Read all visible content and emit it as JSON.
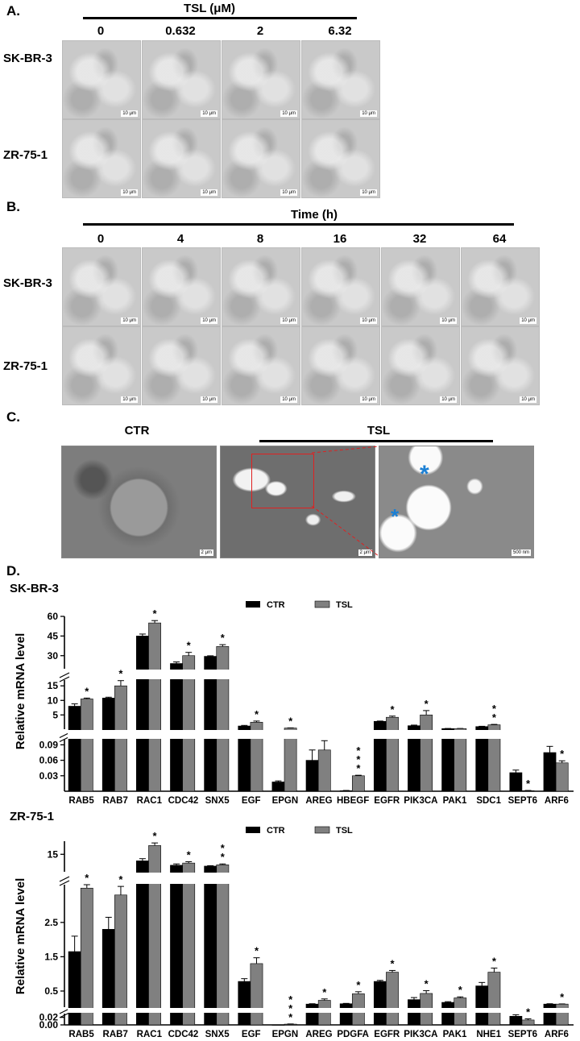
{
  "panelA": {
    "letter": "A.",
    "treatment_label": "TSL (μM)",
    "columns": [
      "0",
      "0.632",
      "2",
      "6.32"
    ],
    "rows": [
      "SK-BR-3",
      "ZR-75-1"
    ],
    "scale_label": "10 μm"
  },
  "panelB": {
    "letter": "B.",
    "treatment_label": "Time (h)",
    "columns": [
      "0",
      "4",
      "8",
      "16",
      "32",
      "64"
    ],
    "rows": [
      "SK-BR-3",
      "ZR-75-1"
    ],
    "scale_label": "10 μm"
  },
  "panelC": {
    "letter": "C.",
    "ctr_label": "CTR",
    "tsl_label": "TSL",
    "asterisk": "*",
    "scale_a": "2 μm",
    "scale_b": "2 μm",
    "scale_c": "500 nm",
    "colors": {
      "zoom_box": "#e02020",
      "asterisk": "#1a7fd4"
    }
  },
  "panelD": {
    "letter": "D."
  },
  "chart_data": [
    {
      "type": "bar",
      "title": "SK-BR-3",
      "ylabel": "Relative mRNA level",
      "axis_breaks": true,
      "y_ticks_upper": [
        "60",
        "45",
        "30"
      ],
      "y_ticks_middle": [
        "15",
        "10",
        "5"
      ],
      "y_ticks_lower": [
        "0.09",
        "0.06",
        "0.03"
      ],
      "legend": {
        "placement": "top-center",
        "entries": [
          "CTR",
          "TSL"
        ]
      },
      "colors": {
        "CTR": "#000000",
        "TSL": "#808080"
      },
      "categories": [
        "RAB5",
        "RAB7",
        "RAC1",
        "CDC42",
        "SNX5",
        "EGF",
        "EPGN",
        "AREG",
        "HBEGF",
        "EGFR",
        "PIK3CA",
        "PAK1",
        "SDC1",
        "SEPT6",
        "ARF6"
      ],
      "series": [
        {
          "name": "CTR",
          "values": [
            8,
            10.8,
            45,
            24,
            29.5,
            1.2,
            0.018,
            0.06,
            0.001,
            2.8,
            1.3,
            0.3,
            1.0,
            0.036,
            0.075
          ],
          "errors": [
            0.8,
            0.3,
            1.5,
            1.2,
            0.4,
            0.2,
            0.002,
            0.02,
            0.0005,
            0.1,
            0.2,
            0.05,
            0.1,
            0.005,
            0.012
          ]
        },
        {
          "name": "TSL",
          "values": [
            10.5,
            15,
            55,
            30,
            37,
            2.5,
            0.5,
            0.08,
            0.03,
            4.2,
            5,
            0.3,
            1.6,
            0.001,
            0.055
          ],
          "errors": [
            0.3,
            1.8,
            1.8,
            2.5,
            1.4,
            0.4,
            0.05,
            0.018,
            0.001,
            0.4,
            1.5,
            0.05,
            0.15,
            0.0005,
            0.004
          ]
        }
      ],
      "significance": [
        "*",
        "*",
        "*",
        "*",
        "*",
        "*",
        "*",
        "",
        "* * *",
        "*",
        "*",
        "",
        "* *",
        "*",
        "*"
      ]
    },
    {
      "type": "bar",
      "title": "ZR-75-1",
      "ylabel": "Relative mRNA level",
      "axis_breaks": true,
      "y_ticks_upper": [
        "15"
      ],
      "y_ticks_middle": [
        "2.5",
        "1.5",
        "0.5"
      ],
      "y_ticks_lower": [
        "0.02",
        "0.00"
      ],
      "legend": {
        "placement": "top-center",
        "entries": [
          "CTR",
          "TSL"
        ]
      },
      "colors": {
        "CTR": "#000000",
        "TSL": "#808080"
      },
      "categories": [
        "RAB5",
        "RAB7",
        "RAC1",
        "CDC42",
        "SNX5",
        "EGF",
        "EPGN",
        "AREG",
        "PDGFA",
        "EGFR",
        "PIK3CA",
        "PAK1",
        "NHE1",
        "SEPT6",
        "ARF6"
      ],
      "series": [
        {
          "name": "CTR",
          "values": [
            1.65,
            2.3,
            13.5,
            12.5,
            12.3,
            0.78,
            0.0,
            0.12,
            0.13,
            0.78,
            0.25,
            0.17,
            0.65,
            0.023,
            0.12
          ],
          "errors": [
            0.45,
            0.35,
            0.5,
            0.3,
            0.1,
            0.08,
            0.0,
            0.01,
            0.01,
            0.03,
            0.06,
            0.02,
            0.1,
            0.004,
            0.01
          ]
        },
        {
          "name": "TSL",
          "values": [
            3.5,
            3.3,
            17,
            13,
            12.6,
            1.3,
            0.002,
            0.23,
            0.42,
            1.05,
            0.43,
            0.3,
            1.05,
            0.013,
            0.12
          ],
          "errors": [
            0.3,
            0.25,
            0.6,
            0.3,
            0.2,
            0.17,
            0.0005,
            0.04,
            0.06,
            0.05,
            0.08,
            0.03,
            0.12,
            0.003,
            0.005
          ]
        }
      ],
      "significance": [
        "*",
        "*",
        "*",
        "*",
        "* *",
        "*",
        "* * *",
        "*",
        "*",
        "*",
        "*",
        "*",
        "*",
        "*",
        "*"
      ]
    }
  ]
}
